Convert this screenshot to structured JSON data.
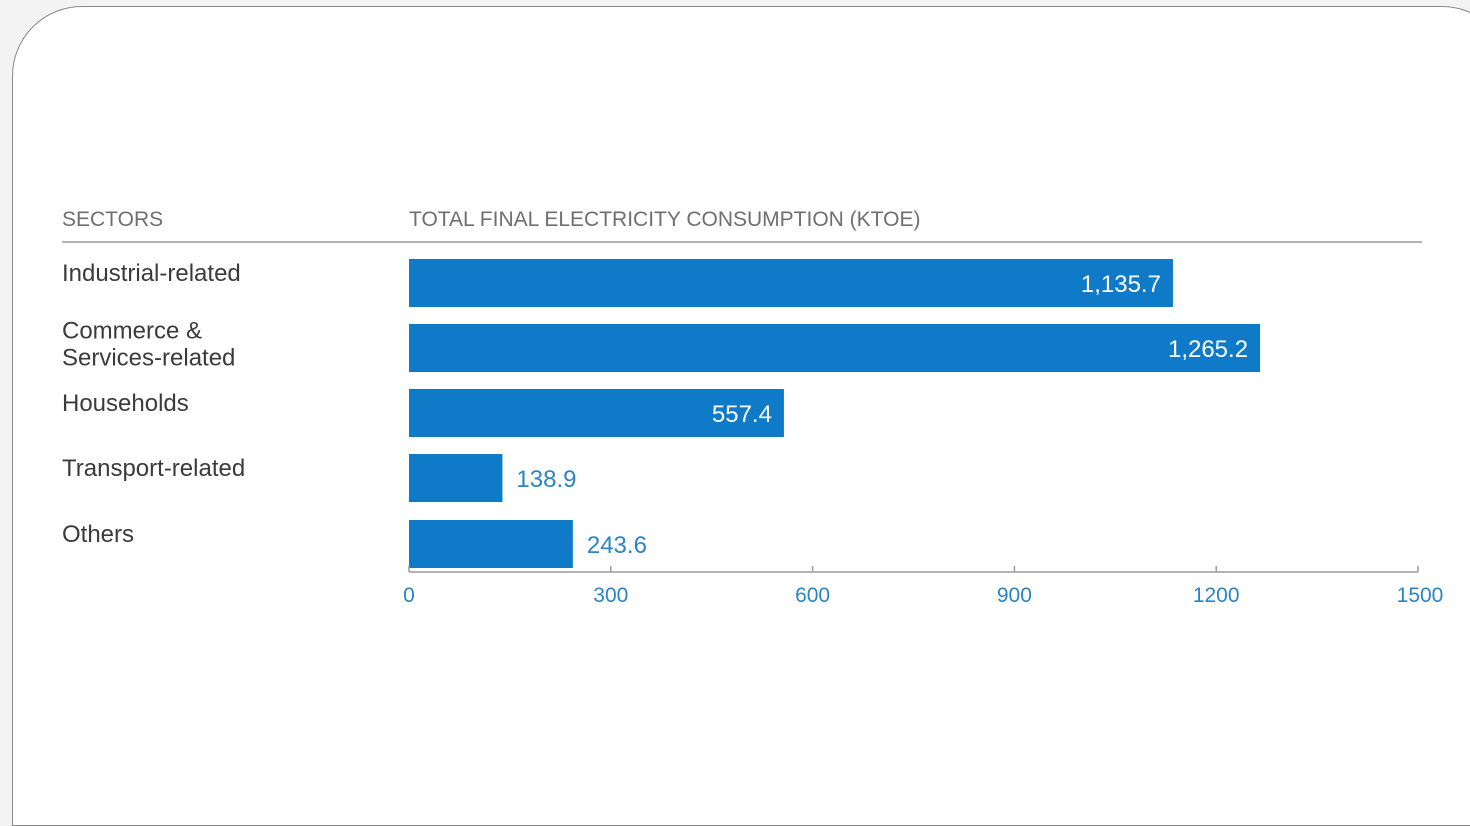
{
  "chart_data": {
    "type": "bar",
    "orientation": "horizontal",
    "category_header": "SECTORS",
    "value_header": "TOTAL FINAL ELECTRICITY CONSUMPTION (KTOE)",
    "categories": [
      [
        "Industrial-related"
      ],
      [
        "Commerce &",
        "Services-related"
      ],
      [
        "Households"
      ],
      [
        "Transport-related"
      ],
      [
        "Others"
      ]
    ],
    "values": [
      1135.7,
      1265.2,
      557.4,
      138.9,
      243.6
    ],
    "value_labels": [
      "1,135.7",
      "1,265.2",
      "557.4",
      "138.9",
      "243.6"
    ],
    "label_inside_bar": [
      true,
      true,
      true,
      false,
      false
    ],
    "xlim": [
      0,
      1500
    ],
    "x_ticks": [
      0,
      300,
      600,
      900,
      1200,
      1500
    ],
    "grid": false,
    "legend": "none"
  },
  "colors": {
    "bar": "#0f7bc8",
    "value_label_outside": "#2b84c3",
    "value_label_inside": "#ffffff",
    "category_text": "#3b3b3b",
    "header_text": "#6f6f6f",
    "tick_text": "#2b84c3",
    "axis_line": "#9a9a9a"
  }
}
